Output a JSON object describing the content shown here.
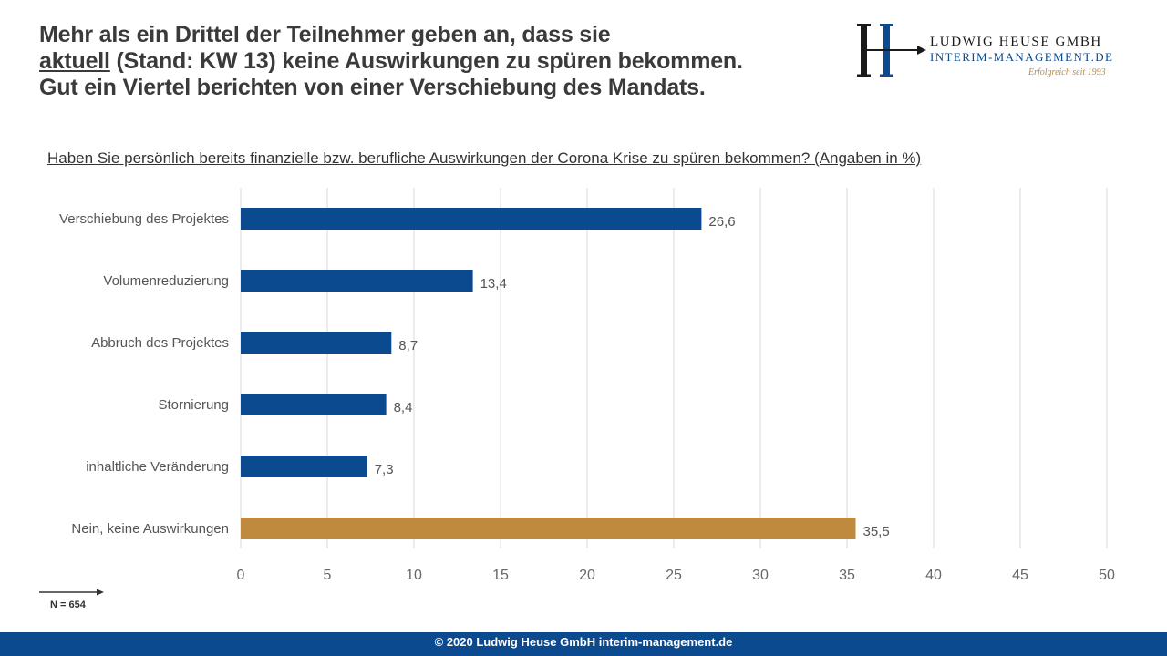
{
  "headline": {
    "line1": "Mehr als ein Drittel der Teilnehmer geben an, dass sie",
    "line2_underlined": "aktuell",
    "line2_rest": " (Stand: KW 13) keine Auswirkungen zu spüren bekommen.",
    "line3": "Gut ein Viertel berichten von einer Verschiebung des Mandats."
  },
  "logo": {
    "monogram": "LH",
    "name": "LUDWIG HEUSE GMBH",
    "sub": "INTERIM-MANAGEMENT.DE",
    "tagline": "Erfolgreich seit 1993",
    "colors": {
      "blue": "#0b4a8f",
      "gold": "#b48a4a",
      "dark": "#1a1a1a"
    }
  },
  "question": "Haben Sie persönlich bereits finanzielle bzw. berufliche Auswirkungen der Corona Krise zu spüren bekommen? (Angaben in %)",
  "sample": "N = 654",
  "footer": "© 2020 Ludwig Heuse GmbH interim-management.de",
  "chart_data": {
    "type": "bar",
    "orientation": "horizontal",
    "title": "Haben Sie persönlich bereits finanzielle bzw. berufliche Auswirkungen der Corona Krise zu spüren bekommen? (Angaben in %)",
    "categories": [
      "Verschiebung des Projektes",
      "Volumenreduzierung",
      "Abbruch des Projektes",
      "Stornierung",
      "inhaltliche Veränderung",
      "Nein, keine Auswirkungen"
    ],
    "values": [
      26.6,
      13.4,
      8.7,
      8.4,
      7.3,
      35.5
    ],
    "value_labels": [
      "26,6",
      "13,4",
      "8,7",
      "8,4",
      "7,3",
      "35,5"
    ],
    "colors": [
      "#0b4a8f",
      "#0b4a8f",
      "#0b4a8f",
      "#0b4a8f",
      "#0b4a8f",
      "#bf8a3d"
    ],
    "xlim": [
      0,
      50
    ],
    "xticks": [
      0,
      5,
      10,
      15,
      20,
      25,
      30,
      35,
      40,
      45,
      50
    ],
    "xticklabels": [
      "0",
      "5",
      "10",
      "15",
      "20",
      "25",
      "30",
      "35",
      "40",
      "45",
      "50"
    ],
    "grid": true,
    "legend": "none",
    "xlabel": "",
    "ylabel": ""
  }
}
